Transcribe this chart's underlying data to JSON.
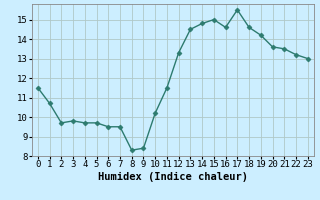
{
  "x": [
    0,
    1,
    2,
    3,
    4,
    5,
    6,
    7,
    8,
    9,
    10,
    11,
    12,
    13,
    14,
    15,
    16,
    17,
    18,
    19,
    20,
    21,
    22,
    23
  ],
  "y": [
    11.5,
    10.7,
    9.7,
    9.8,
    9.7,
    9.7,
    9.5,
    9.5,
    8.3,
    8.4,
    10.2,
    11.5,
    13.3,
    14.5,
    14.8,
    15.0,
    14.6,
    15.5,
    14.6,
    14.2,
    13.6,
    13.5,
    13.2,
    13.0
  ],
  "line_color": "#2d7b6f",
  "marker": "D",
  "markersize": 2.5,
  "linewidth": 1.0,
  "bg_color": "#cceeff",
  "grid_color": "#b0c8c8",
  "xlabel": "Humidex (Indice chaleur)",
  "xlabel_fontsize": 7.5,
  "tick_fontsize": 6.5,
  "ylim": [
    8,
    15.8
  ],
  "xlim": [
    -0.5,
    23.5
  ],
  "yticks": [
    8,
    9,
    10,
    11,
    12,
    13,
    14,
    15
  ],
  "xticks": [
    0,
    1,
    2,
    3,
    4,
    5,
    6,
    7,
    8,
    9,
    10,
    11,
    12,
    13,
    14,
    15,
    16,
    17,
    18,
    19,
    20,
    21,
    22,
    23
  ]
}
